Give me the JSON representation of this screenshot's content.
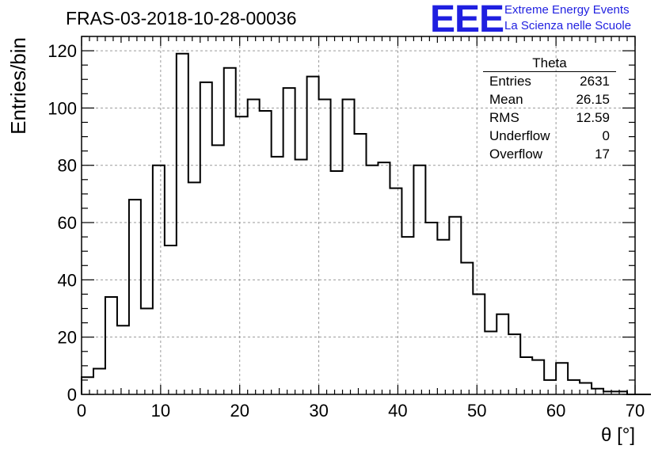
{
  "header": {
    "title": "FRAS-03-2018-10-28-00036",
    "logo_text": "EEE",
    "logo_line1": "Extreme Energy Events",
    "logo_line2": "La Scienza nelle Scuole"
  },
  "stats": {
    "title": "Theta",
    "rows": [
      {
        "label": "Entries",
        "value": "2631"
      },
      {
        "label": "Mean",
        "value": "26.15"
      },
      {
        "label": "RMS",
        "value": "12.59"
      },
      {
        "label": "Underflow",
        "value": "0"
      },
      {
        "label": "Overflow",
        "value": "17"
      }
    ]
  },
  "colors": {
    "logo": "#1f1fe0",
    "line": "#000000",
    "grid": "#9a9a9a"
  },
  "chart_data": {
    "type": "histogram",
    "xlabel": "θ [°]",
    "ylabel": "Entries/bin",
    "xlim": [
      0,
      70
    ],
    "ylim": [
      0,
      125
    ],
    "bin_width": 1.5,
    "x_ticks": [
      "0",
      "10",
      "20",
      "30",
      "40",
      "50",
      "60",
      "70"
    ],
    "y_ticks": [
      "0",
      "20",
      "40",
      "60",
      "80",
      "100",
      "120"
    ],
    "grid": true,
    "values": [
      6,
      9,
      34,
      24,
      68,
      30,
      80,
      52,
      119,
      74,
      109,
      87,
      114,
      97,
      103,
      99,
      83,
      107,
      82,
      111,
      103,
      78,
      103,
      91,
      80,
      81,
      72,
      55,
      80,
      60,
      54,
      62,
      46,
      35,
      22,
      28,
      21,
      13,
      12,
      5,
      11,
      5,
      4,
      2,
      1,
      1,
      0,
      0
    ]
  }
}
